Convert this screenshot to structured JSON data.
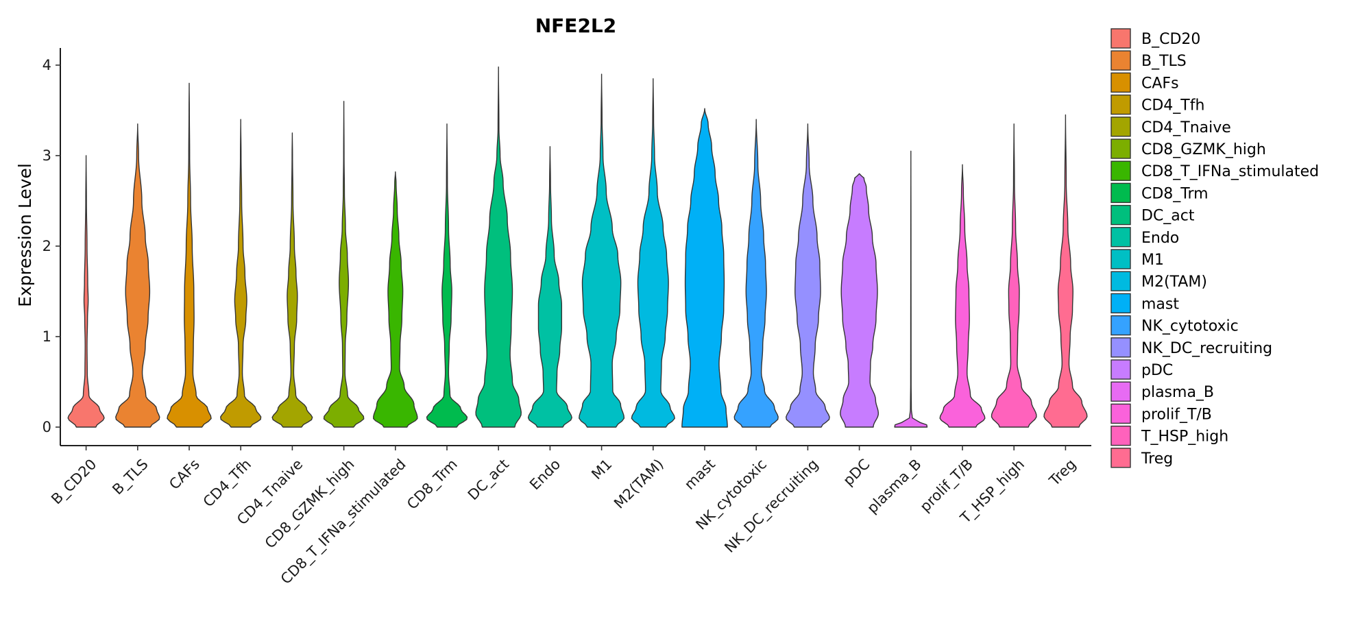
{
  "chart_data": {
    "type": "violin",
    "title": "NFE2L2",
    "xlabel": "",
    "ylabel": "Expression Level",
    "ylim": [
      0,
      4
    ],
    "yticks": [
      0,
      1,
      2,
      3,
      4
    ],
    "grid": false,
    "legend_position": "right",
    "categories": [
      "B_CD20",
      "B_TLS",
      "CAFs",
      "CD4_Tfh",
      "CD4_Tnaive",
      "CD8_GZMK_high",
      "CD8_T_IFNa_stimulated",
      "CD8_Trm",
      "DC_act",
      "Endo",
      "M1",
      "M2(TAM)",
      "mast",
      "NK_cytotoxic",
      "NK_DC_recruiting",
      "pDC",
      "plasma_B",
      "prolif_T/B",
      "T_HSP_high",
      "Treg"
    ],
    "colors": [
      "#F8766D",
      "#EA8331",
      "#D89000",
      "#C09B00",
      "#A3A500",
      "#7CAE00",
      "#39B600",
      "#00BB4E",
      "#00BF7D",
      "#00C1A3",
      "#00BFC4",
      "#00BAE0",
      "#00B0F6",
      "#35A2FF",
      "#9590FF",
      "#C77CFF",
      "#E76BF3",
      "#FA62DB",
      "#FF62BC",
      "#FF6C91"
    ],
    "series": [
      {
        "name": "B_CD20",
        "max": 3.0,
        "profile": [
          [
            0,
            0.42
          ],
          [
            0.1,
            0.78
          ],
          [
            0.2,
            0.58
          ],
          [
            0.35,
            0.12
          ],
          [
            0.6,
            0.05
          ],
          [
            0.9,
            0.04
          ],
          [
            1.2,
            0.06
          ],
          [
            1.4,
            0.09
          ],
          [
            1.6,
            0.07
          ],
          [
            2.0,
            0.04
          ],
          [
            2.5,
            0.015
          ],
          [
            3.0,
            0
          ]
        ]
      },
      {
        "name": "B_TLS",
        "max": 3.35,
        "profile": [
          [
            0,
            0.55
          ],
          [
            0.1,
            0.95
          ],
          [
            0.2,
            0.82
          ],
          [
            0.35,
            0.35
          ],
          [
            0.6,
            0.2
          ],
          [
            0.9,
            0.33
          ],
          [
            1.2,
            0.45
          ],
          [
            1.5,
            0.52
          ],
          [
            1.8,
            0.46
          ],
          [
            2.1,
            0.33
          ],
          [
            2.5,
            0.18
          ],
          [
            3.0,
            0.04
          ],
          [
            3.35,
            0
          ]
        ]
      },
      {
        "name": "CAFs",
        "max": 3.8,
        "profile": [
          [
            0,
            0.55
          ],
          [
            0.1,
            0.95
          ],
          [
            0.2,
            0.8
          ],
          [
            0.35,
            0.3
          ],
          [
            0.6,
            0.16
          ],
          [
            0.9,
            0.18
          ],
          [
            1.2,
            0.21
          ],
          [
            1.5,
            0.2
          ],
          [
            2.0,
            0.13
          ],
          [
            2.5,
            0.06
          ],
          [
            3.0,
            0.02
          ],
          [
            3.5,
            0.008
          ],
          [
            3.8,
            0
          ]
        ]
      },
      {
        "name": "CD4_Tfh",
        "max": 3.4,
        "profile": [
          [
            0,
            0.42
          ],
          [
            0.1,
            0.88
          ],
          [
            0.2,
            0.65
          ],
          [
            0.35,
            0.16
          ],
          [
            0.6,
            0.07
          ],
          [
            0.9,
            0.1
          ],
          [
            1.2,
            0.22
          ],
          [
            1.4,
            0.26
          ],
          [
            1.7,
            0.18
          ],
          [
            2.0,
            0.1
          ],
          [
            2.5,
            0.04
          ],
          [
            3.0,
            0.015
          ],
          [
            3.4,
            0
          ]
        ]
      },
      {
        "name": "CD4_Tnaive",
        "max": 3.25,
        "profile": [
          [
            0,
            0.4
          ],
          [
            0.1,
            0.87
          ],
          [
            0.2,
            0.62
          ],
          [
            0.35,
            0.15
          ],
          [
            0.6,
            0.06
          ],
          [
            0.9,
            0.09
          ],
          [
            1.2,
            0.19
          ],
          [
            1.45,
            0.22
          ],
          [
            1.7,
            0.16
          ],
          [
            2.0,
            0.09
          ],
          [
            2.5,
            0.03
          ],
          [
            3.0,
            0.01
          ],
          [
            3.25,
            0
          ]
        ]
      },
      {
        "name": "CD8_GZMK_high",
        "max": 3.6,
        "profile": [
          [
            0,
            0.42
          ],
          [
            0.1,
            0.87
          ],
          [
            0.2,
            0.63
          ],
          [
            0.35,
            0.16
          ],
          [
            0.6,
            0.05
          ],
          [
            0.9,
            0.06
          ],
          [
            1.2,
            0.13
          ],
          [
            1.6,
            0.2
          ],
          [
            1.9,
            0.15
          ],
          [
            2.2,
            0.07
          ],
          [
            2.6,
            0.025
          ],
          [
            3.0,
            0.01
          ],
          [
            3.6,
            0
          ]
        ]
      },
      {
        "name": "CD8_T_IFNa_stimulated",
        "max": 2.82,
        "profile": [
          [
            0,
            0.5
          ],
          [
            0.1,
            0.95
          ],
          [
            0.25,
            0.8
          ],
          [
            0.45,
            0.38
          ],
          [
            0.65,
            0.18
          ],
          [
            0.9,
            0.2
          ],
          [
            1.2,
            0.28
          ],
          [
            1.5,
            0.32
          ],
          [
            1.8,
            0.25
          ],
          [
            2.1,
            0.15
          ],
          [
            2.4,
            0.08
          ],
          [
            2.7,
            0.03
          ],
          [
            2.82,
            0
          ]
        ]
      },
      {
        "name": "CD8_Trm",
        "max": 3.35,
        "profile": [
          [
            0,
            0.42
          ],
          [
            0.1,
            0.88
          ],
          [
            0.2,
            0.6
          ],
          [
            0.35,
            0.13
          ],
          [
            0.6,
            0.07
          ],
          [
            0.9,
            0.1
          ],
          [
            1.2,
            0.18
          ],
          [
            1.5,
            0.21
          ],
          [
            1.8,
            0.14
          ],
          [
            2.2,
            0.07
          ],
          [
            2.7,
            0.02
          ],
          [
            3.35,
            0
          ]
        ]
      },
      {
        "name": "DC_act",
        "max": 3.98,
        "profile": [
          [
            0,
            0.7
          ],
          [
            0.15,
            0.98
          ],
          [
            0.3,
            0.88
          ],
          [
            0.5,
            0.6
          ],
          [
            0.8,
            0.5
          ],
          [
            1.1,
            0.55
          ],
          [
            1.5,
            0.6
          ],
          [
            1.9,
            0.52
          ],
          [
            2.3,
            0.38
          ],
          [
            2.7,
            0.2
          ],
          [
            3.0,
            0.07
          ],
          [
            3.3,
            0.02
          ],
          [
            3.98,
            0
          ]
        ]
      },
      {
        "name": "Endo",
        "max": 3.1,
        "profile": [
          [
            0,
            0.55
          ],
          [
            0.1,
            0.94
          ],
          [
            0.22,
            0.75
          ],
          [
            0.4,
            0.28
          ],
          [
            0.6,
            0.3
          ],
          [
            0.85,
            0.42
          ],
          [
            1.1,
            0.5
          ],
          [
            1.35,
            0.5
          ],
          [
            1.6,
            0.38
          ],
          [
            1.9,
            0.18
          ],
          [
            2.3,
            0.06
          ],
          [
            2.7,
            0.02
          ],
          [
            3.1,
            0
          ]
        ]
      },
      {
        "name": "M1",
        "max": 3.9,
        "profile": [
          [
            0,
            0.62
          ],
          [
            0.1,
            0.97
          ],
          [
            0.25,
            0.82
          ],
          [
            0.4,
            0.48
          ],
          [
            0.7,
            0.46
          ],
          [
            1.0,
            0.63
          ],
          [
            1.3,
            0.79
          ],
          [
            1.6,
            0.83
          ],
          [
            1.9,
            0.7
          ],
          [
            2.2,
            0.46
          ],
          [
            2.6,
            0.2
          ],
          [
            3.0,
            0.06
          ],
          [
            3.4,
            0.02
          ],
          [
            3.9,
            0
          ]
        ]
      },
      {
        "name": "M2(TAM)",
        "max": 3.85,
        "profile": [
          [
            0,
            0.55
          ],
          [
            0.1,
            0.93
          ],
          [
            0.22,
            0.73
          ],
          [
            0.4,
            0.33
          ],
          [
            0.7,
            0.36
          ],
          [
            1.0,
            0.52
          ],
          [
            1.3,
            0.62
          ],
          [
            1.6,
            0.66
          ],
          [
            1.9,
            0.58
          ],
          [
            2.2,
            0.43
          ],
          [
            2.6,
            0.18
          ],
          [
            3.0,
            0.06
          ],
          [
            3.4,
            0.02
          ],
          [
            3.85,
            0
          ]
        ]
      },
      {
        "name": "mast",
        "max": 3.52,
        "profile": [
          [
            0,
            0.98
          ],
          [
            0.2,
            0.92
          ],
          [
            0.4,
            0.7
          ],
          [
            0.7,
            0.62
          ],
          [
            1.0,
            0.72
          ],
          [
            1.3,
            0.82
          ],
          [
            1.6,
            0.84
          ],
          [
            1.9,
            0.82
          ],
          [
            2.2,
            0.74
          ],
          [
            2.5,
            0.6
          ],
          [
            2.8,
            0.45
          ],
          [
            3.1,
            0.3
          ],
          [
            3.35,
            0.15
          ],
          [
            3.52,
            0
          ]
        ]
      },
      {
        "name": "NK_cytotoxic",
        "max": 3.4,
        "profile": [
          [
            0,
            0.6
          ],
          [
            0.1,
            0.95
          ],
          [
            0.22,
            0.78
          ],
          [
            0.4,
            0.36
          ],
          [
            0.6,
            0.22
          ],
          [
            0.9,
            0.28
          ],
          [
            1.2,
            0.38
          ],
          [
            1.5,
            0.44
          ],
          [
            1.8,
            0.4
          ],
          [
            2.1,
            0.32
          ],
          [
            2.5,
            0.19
          ],
          [
            2.9,
            0.07
          ],
          [
            3.4,
            0
          ]
        ]
      },
      {
        "name": "NK_DC_recruiting",
        "max": 3.35,
        "profile": [
          [
            0,
            0.58
          ],
          [
            0.1,
            0.94
          ],
          [
            0.22,
            0.75
          ],
          [
            0.4,
            0.34
          ],
          [
            0.6,
            0.24
          ],
          [
            0.9,
            0.32
          ],
          [
            1.2,
            0.46
          ],
          [
            1.5,
            0.55
          ],
          [
            1.8,
            0.52
          ],
          [
            2.1,
            0.4
          ],
          [
            2.5,
            0.22
          ],
          [
            2.9,
            0.06
          ],
          [
            3.35,
            0
          ]
        ]
      },
      {
        "name": "pDC",
        "max": 2.8,
        "profile": [
          [
            0,
            0.6
          ],
          [
            0.15,
            0.82
          ],
          [
            0.3,
            0.7
          ],
          [
            0.5,
            0.46
          ],
          [
            0.7,
            0.48
          ],
          [
            0.9,
            0.58
          ],
          [
            1.2,
            0.72
          ],
          [
            1.5,
            0.78
          ],
          [
            1.8,
            0.72
          ],
          [
            2.1,
            0.56
          ],
          [
            2.4,
            0.4
          ],
          [
            2.65,
            0.3
          ],
          [
            2.75,
            0.2
          ],
          [
            2.8,
            0
          ]
        ]
      },
      {
        "name": "plasma_B",
        "max": 3.05,
        "profile": [
          [
            0,
            0.7
          ],
          [
            0.03,
            0.68
          ],
          [
            0.06,
            0.32
          ],
          [
            0.1,
            0.06
          ],
          [
            0.2,
            0.02
          ],
          [
            0.5,
            0.01
          ],
          [
            1.0,
            0.008
          ],
          [
            2.0,
            0.005
          ],
          [
            3.05,
            0
          ]
        ]
      },
      {
        "name": "prolif_T/B",
        "max": 2.9,
        "profile": [
          [
            0,
            0.58
          ],
          [
            0.1,
            0.97
          ],
          [
            0.2,
            0.82
          ],
          [
            0.35,
            0.34
          ],
          [
            0.6,
            0.2
          ],
          [
            0.9,
            0.25
          ],
          [
            1.2,
            0.3
          ],
          [
            1.5,
            0.28
          ],
          [
            1.8,
            0.2
          ],
          [
            2.2,
            0.1
          ],
          [
            2.6,
            0.04
          ],
          [
            2.9,
            0
          ]
        ]
      },
      {
        "name": "T_HSP_high",
        "max": 3.35,
        "profile": [
          [
            0,
            0.62
          ],
          [
            0.12,
            0.97
          ],
          [
            0.28,
            0.75
          ],
          [
            0.45,
            0.32
          ],
          [
            0.7,
            0.14
          ],
          [
            1.0,
            0.16
          ],
          [
            1.3,
            0.22
          ],
          [
            1.5,
            0.23
          ],
          [
            1.8,
            0.15
          ],
          [
            2.2,
            0.07
          ],
          [
            2.7,
            0.02
          ],
          [
            3.35,
            0
          ]
        ]
      },
      {
        "name": "Treg",
        "max": 3.45,
        "profile": [
          [
            0,
            0.58
          ],
          [
            0.12,
            0.93
          ],
          [
            0.28,
            0.7
          ],
          [
            0.45,
            0.3
          ],
          [
            0.7,
            0.15
          ],
          [
            1.0,
            0.2
          ],
          [
            1.3,
            0.3
          ],
          [
            1.5,
            0.32
          ],
          [
            1.8,
            0.22
          ],
          [
            2.2,
            0.1
          ],
          [
            2.7,
            0.03
          ],
          [
            3.45,
            0
          ]
        ]
      }
    ]
  }
}
